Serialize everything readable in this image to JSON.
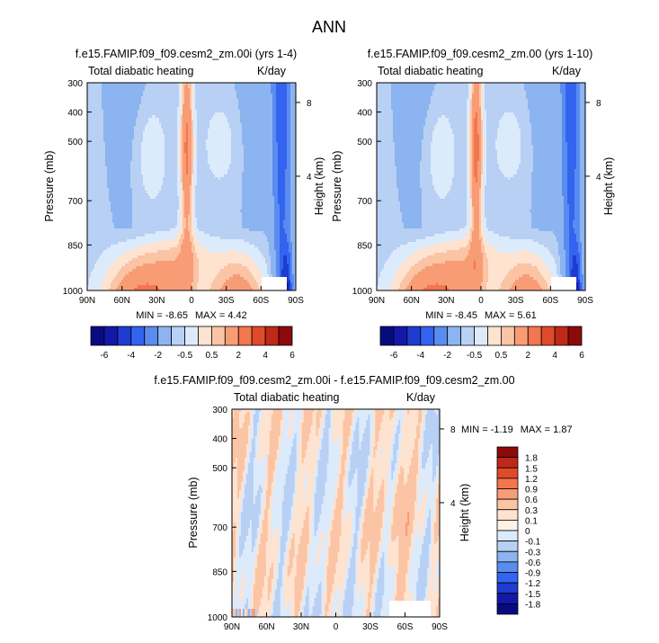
{
  "page_title": "ANN",
  "chart_data": [
    {
      "type": "heatmap",
      "title": "f.e15.FAMIP.f09_f09.cesm2_zm.00i (yrs 1-4)",
      "left_string": "Total diabatic heating",
      "right_string": "K/day",
      "xlabel": "",
      "ylabel": "Pressure (mb)",
      "y2label": "Height (km)",
      "x_ticks": [
        "90N",
        "60N",
        "30N",
        "0",
        "30S",
        "60S",
        "90S"
      ],
      "y_ticks": [
        "300",
        "400",
        "500",
        "700",
        "850",
        "1000"
      ],
      "y2_ticks": [
        "8",
        "4"
      ],
      "min_label": "MIN = ",
      "min_value": "-8.65",
      "max_label": "MAX = ",
      "max_value": "4.42",
      "levels": [
        -6,
        -5,
        -4,
        -3,
        -2,
        -1,
        -0.5,
        0,
        0.5,
        1,
        2,
        3,
        4,
        5,
        6
      ],
      "colorbar_labels": [
        "-6",
        "-4",
        "-2",
        "-0.5",
        "0.5",
        "2",
        "4",
        "6"
      ]
    },
    {
      "type": "heatmap",
      "title": "f.e15.FAMIP.f09_f09.cesm2_zm.00 (yrs 1-10)",
      "left_string": "Total diabatic heating",
      "right_string": "K/day",
      "xlabel": "",
      "ylabel": "Pressure (mb)",
      "y2label": "Height (km)",
      "x_ticks": [
        "90N",
        "60N",
        "30N",
        "0",
        "30S",
        "60S",
        "90S"
      ],
      "y_ticks": [
        "300",
        "400",
        "500",
        "700",
        "850",
        "1000"
      ],
      "y2_ticks": [
        "8",
        "4"
      ],
      "min_label": "MIN = ",
      "min_value": "-8.45",
      "max_label": "MAX = ",
      "max_value": "5.61",
      "levels": [
        -6,
        -5,
        -4,
        -3,
        -2,
        -1,
        -0.5,
        0,
        0.5,
        1,
        2,
        3,
        4,
        5,
        6
      ],
      "colorbar_labels": [
        "-6",
        "-4",
        "-2",
        "-0.5",
        "0.5",
        "2",
        "4",
        "6"
      ]
    },
    {
      "type": "heatmap",
      "title": "f.e15.FAMIP.f09_f09.cesm2_zm.00i - f.e15.FAMIP.f09_f09.cesm2_zm.00",
      "left_string": "Total diabatic heating",
      "right_string": "K/day",
      "xlabel": "",
      "ylabel": "Pressure (mb)",
      "y2label": "Height (km)",
      "x_ticks": [
        "90N",
        "60N",
        "30N",
        "0",
        "30S",
        "60S",
        "90S"
      ],
      "y_ticks": [
        "300",
        "400",
        "500",
        "700",
        "850",
        "1000"
      ],
      "y2_ticks": [
        "8",
        "4"
      ],
      "min_label": "MIN = ",
      "min_value": "-1.19",
      "max_label": "MAX = ",
      "max_value": "1.87",
      "levels": [
        -1.8,
        -1.5,
        -1.2,
        -0.9,
        -0.6,
        -0.3,
        -0.1,
        0,
        0.1,
        0.3,
        0.6,
        0.9,
        1.2,
        1.5,
        1.8
      ],
      "colorbar_labels": [
        "1.8",
        "1.5",
        "1.2",
        "0.9",
        "0.6",
        "0.3",
        "0.1",
        "0",
        "-0.1",
        "-0.3",
        "-0.6",
        "-0.9",
        "-1.2",
        "-1.5",
        "-1.8"
      ]
    }
  ],
  "colors": {
    "palette": [
      "#0a0a80",
      "#1418a8",
      "#1e3cd2",
      "#3264f0",
      "#5a8cf0",
      "#8cb4f0",
      "#b8d0f4",
      "#dcebfc",
      "#fde3d0",
      "#fbc4a4",
      "#f89c76",
      "#f2764e",
      "#e04a2a",
      "#c02818",
      "#8c0a0a"
    ],
    "missing": "#ffffff",
    "outline": "#000000"
  }
}
